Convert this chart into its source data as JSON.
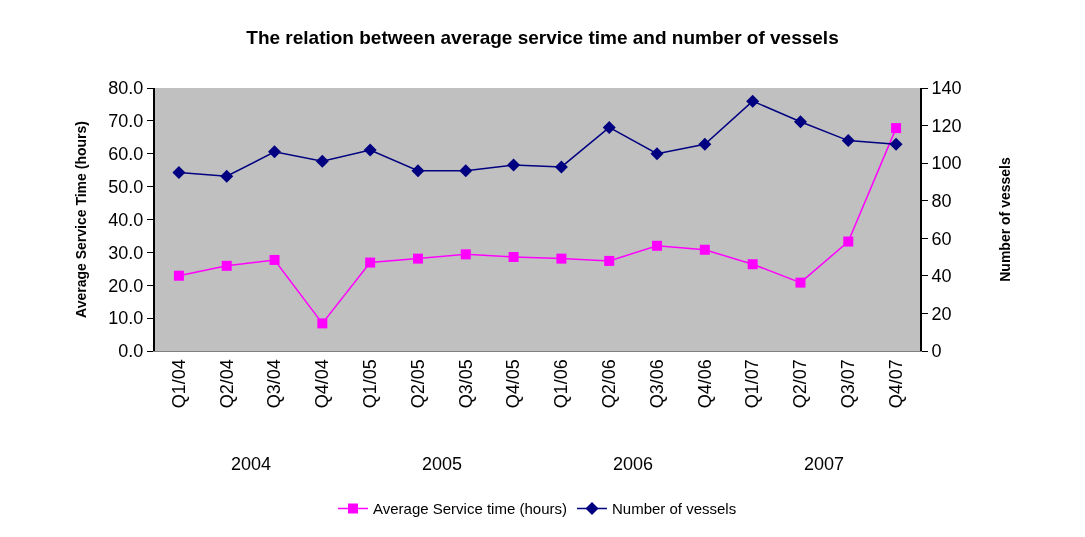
{
  "chart_data": {
    "type": "line",
    "title": "The relation between average service time and number of vessels",
    "ylabel": "Average Service Time (hours)",
    "y2label": "Number of vessels",
    "categories": [
      "Q1/04",
      "Q2/04",
      "Q3/04",
      "Q4/04",
      "Q1/05",
      "Q2/05",
      "Q3/05",
      "Q4/05",
      "Q1/06",
      "Q2/06",
      "Q3/06",
      "Q4/06",
      "Q1/07",
      "Q2/07",
      "Q3/07",
      "Q4/07"
    ],
    "series": [
      {
        "name": "Average Service time (hours)",
        "color": "#ff00ff",
        "marker": "square",
        "values": [
          22.9,
          25.9,
          27.7,
          8.4,
          26.9,
          28.1,
          29.4,
          28.6,
          28.1,
          27.4,
          32.0,
          30.8,
          26.4,
          20.8,
          33.3,
          67.8
        ]
      },
      {
        "name": "Number of vessels",
        "color": "#000080",
        "marker": "diamond",
        "axis": "y2",
        "values": [
          95,
          93,
          106,
          101,
          107,
          96,
          96,
          99,
          98,
          119,
          105,
          110,
          133,
          122,
          112,
          110
        ]
      }
    ],
    "ylim": [
      0,
      80
    ],
    "yticks": [
      {
        "value": 0,
        "label": "0.0"
      },
      {
        "value": 10,
        "label": "10.0"
      },
      {
        "value": 20,
        "label": "20.0"
      },
      {
        "value": 30,
        "label": "30.0"
      },
      {
        "value": 40,
        "label": "40.0"
      },
      {
        "value": 50,
        "label": "50.0"
      },
      {
        "value": 60,
        "label": "60.0"
      },
      {
        "value": 70,
        "label": "70.0"
      },
      {
        "value": 80,
        "label": "80.0"
      }
    ],
    "y2lim": [
      0,
      140
    ],
    "y2ticks": [
      0,
      20,
      40,
      60,
      80,
      100,
      120,
      140
    ],
    "annotations": [
      "2004",
      "2005",
      "2006",
      "2007"
    ],
    "grid": false,
    "legend": "bottom",
    "line_style": "solid"
  }
}
